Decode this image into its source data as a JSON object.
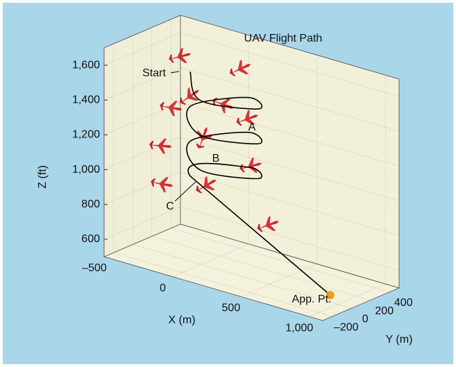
{
  "chart_data": {
    "type": "line3d",
    "title": "UAV Flight Path",
    "x_label": "X (m)",
    "y_label": "Y (m)",
    "z_label": "Z (ft)",
    "xlim": [
      -500,
      1100
    ],
    "ylim": [
      -300,
      500
    ],
    "zlim": [
      500,
      1700
    ],
    "xticks": [
      {
        "value": -500,
        "label": "–500"
      },
      0,
      500,
      {
        "value": 1000,
        "label": "1,000"
      }
    ],
    "yticks": [
      {
        "value": -200,
        "label": "–200"
      },
      0,
      200,
      400
    ],
    "zticks": [
      600,
      800,
      {
        "value": 1000,
        "label": "1,000"
      },
      {
        "value": 1200,
        "label": "1,200"
      },
      {
        "value": 1400,
        "label": "1,400"
      },
      {
        "value": 1600,
        "label": "1,600"
      }
    ],
    "grid": true,
    "series": [
      {
        "color": "#000000",
        "x": [
          -150,
          100,
          350,
          100,
          -150,
          100,
          350,
          100,
          -150,
          100,
          350,
          100,
          -150,
          1050
        ],
        "y": [
          100,
          -150,
          100,
          350,
          100,
          -150,
          100,
          350,
          100,
          -150,
          100,
          350,
          100,
          -150
        ],
        "z": [
          1550,
          1500,
          1450,
          1400,
          1350,
          1300,
          1250,
          1200,
          1150,
          1100,
          1050,
          1000,
          950,
          600
        ]
      }
    ],
    "endpoint_color": "#f39a1e",
    "annotations": [
      "Start",
      "A",
      "B",
      "C",
      "App. Pt."
    ]
  }
}
